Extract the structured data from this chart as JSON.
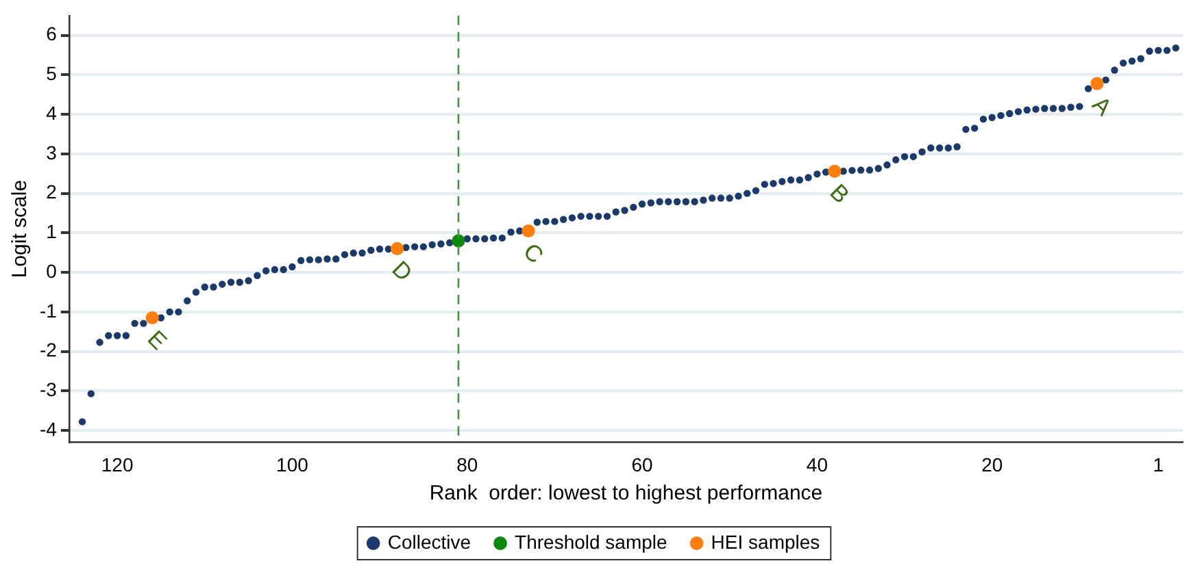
{
  "chart_data": {
    "type": "scatter",
    "xlabel": "Rank  order: lowest to highest performance",
    "ylabel": "Logit scale",
    "xlim": [
      125.5,
      -1.8
    ],
    "ylim": [
      -4.3,
      6.5
    ],
    "xticks": [
      120,
      100,
      80,
      60,
      40,
      20,
      1
    ],
    "yticks": [
      -4,
      -3,
      -2,
      -1,
      0,
      1,
      2,
      3,
      4,
      5,
      6
    ],
    "grid": "y",
    "legend": "bottom",
    "marker": "circle",
    "ref_lines": [
      {
        "axis": "x",
        "value": 81,
        "color": "#3a9a3a",
        "line_style": "dashed"
      }
    ],
    "annotations": [
      {
        "text": "A",
        "x": 8,
        "y": 4.78
      },
      {
        "text": "B",
        "x": 38,
        "y": 2.56
      },
      {
        "text": "C",
        "x": 73,
        "y": 1.05
      },
      {
        "text": "D",
        "x": 88,
        "y": 0.6
      },
      {
        "text": "E",
        "x": 116,
        "y": -1.15
      }
    ],
    "series": [
      {
        "name": "Collective",
        "color": "#1b3a6b",
        "x": [
          124,
          123,
          122,
          121,
          120,
          119,
          118,
          117,
          115,
          114,
          113,
          112,
          111,
          110,
          109,
          108,
          107,
          106,
          105,
          104,
          103,
          102,
          101,
          100,
          99,
          98,
          97,
          96,
          95,
          94,
          93,
          92,
          91,
          90,
          89,
          87,
          86,
          85,
          84,
          83,
          82,
          80,
          79,
          78,
          77,
          76,
          75,
          74,
          72,
          71,
          70,
          69,
          68,
          67,
          66,
          65,
          64,
          63,
          62,
          61,
          60,
          59,
          58,
          57,
          56,
          55,
          54,
          53,
          52,
          51,
          50,
          49,
          48,
          47,
          46,
          45,
          44,
          43,
          42,
          41,
          40,
          39,
          37,
          36,
          35,
          34,
          33,
          32,
          31,
          30,
          29,
          28,
          27,
          26,
          25,
          24,
          23,
          22,
          21,
          20,
          19,
          18,
          17,
          16,
          15,
          14,
          13,
          12,
          11,
          10,
          9,
          7,
          6,
          5,
          4,
          3,
          2,
          1,
          0,
          -1
        ],
        "values": [
          -3.78,
          -3.07,
          -1.77,
          -1.6,
          -1.6,
          -1.6,
          -1.29,
          -1.29,
          -1.15,
          -1.0,
          -1.0,
          -0.72,
          -0.5,
          -0.37,
          -0.37,
          -0.3,
          -0.25,
          -0.25,
          -0.21,
          -0.08,
          0.04,
          0.07,
          0.07,
          0.14,
          0.3,
          0.32,
          0.32,
          0.34,
          0.34,
          0.45,
          0.49,
          0.49,
          0.56,
          0.59,
          0.59,
          0.63,
          0.65,
          0.65,
          0.7,
          0.72,
          0.75,
          0.85,
          0.85,
          0.85,
          0.87,
          0.87,
          1.02,
          1.05,
          1.27,
          1.29,
          1.29,
          1.34,
          1.38,
          1.42,
          1.42,
          1.42,
          1.42,
          1.53,
          1.57,
          1.65,
          1.73,
          1.76,
          1.79,
          1.79,
          1.79,
          1.79,
          1.79,
          1.83,
          1.88,
          1.88,
          1.88,
          1.93,
          2.0,
          2.07,
          2.23,
          2.25,
          2.3,
          2.34,
          2.34,
          2.4,
          2.49,
          2.54,
          2.56,
          2.58,
          2.59,
          2.59,
          2.63,
          2.72,
          2.85,
          2.93,
          2.93,
          3.05,
          3.15,
          3.15,
          3.15,
          3.18,
          3.62,
          3.65,
          3.88,
          3.92,
          3.97,
          4.02,
          4.07,
          4.11,
          4.13,
          4.15,
          4.15,
          4.15,
          4.18,
          4.2,
          4.65,
          4.87,
          5.12,
          5.3,
          5.35,
          5.41,
          5.6,
          5.62,
          5.62,
          5.68
        ]
      },
      {
        "name": "Threshold sample",
        "color": "#0a8a0a",
        "x": [
          81
        ],
        "values": [
          0.8
        ]
      },
      {
        "name": "HEI samples",
        "color": "#ff7f0e",
        "x": [
          116,
          88,
          73,
          38,
          8
        ],
        "values": [
          -1.15,
          0.6,
          1.05,
          2.56,
          4.78
        ]
      }
    ]
  }
}
